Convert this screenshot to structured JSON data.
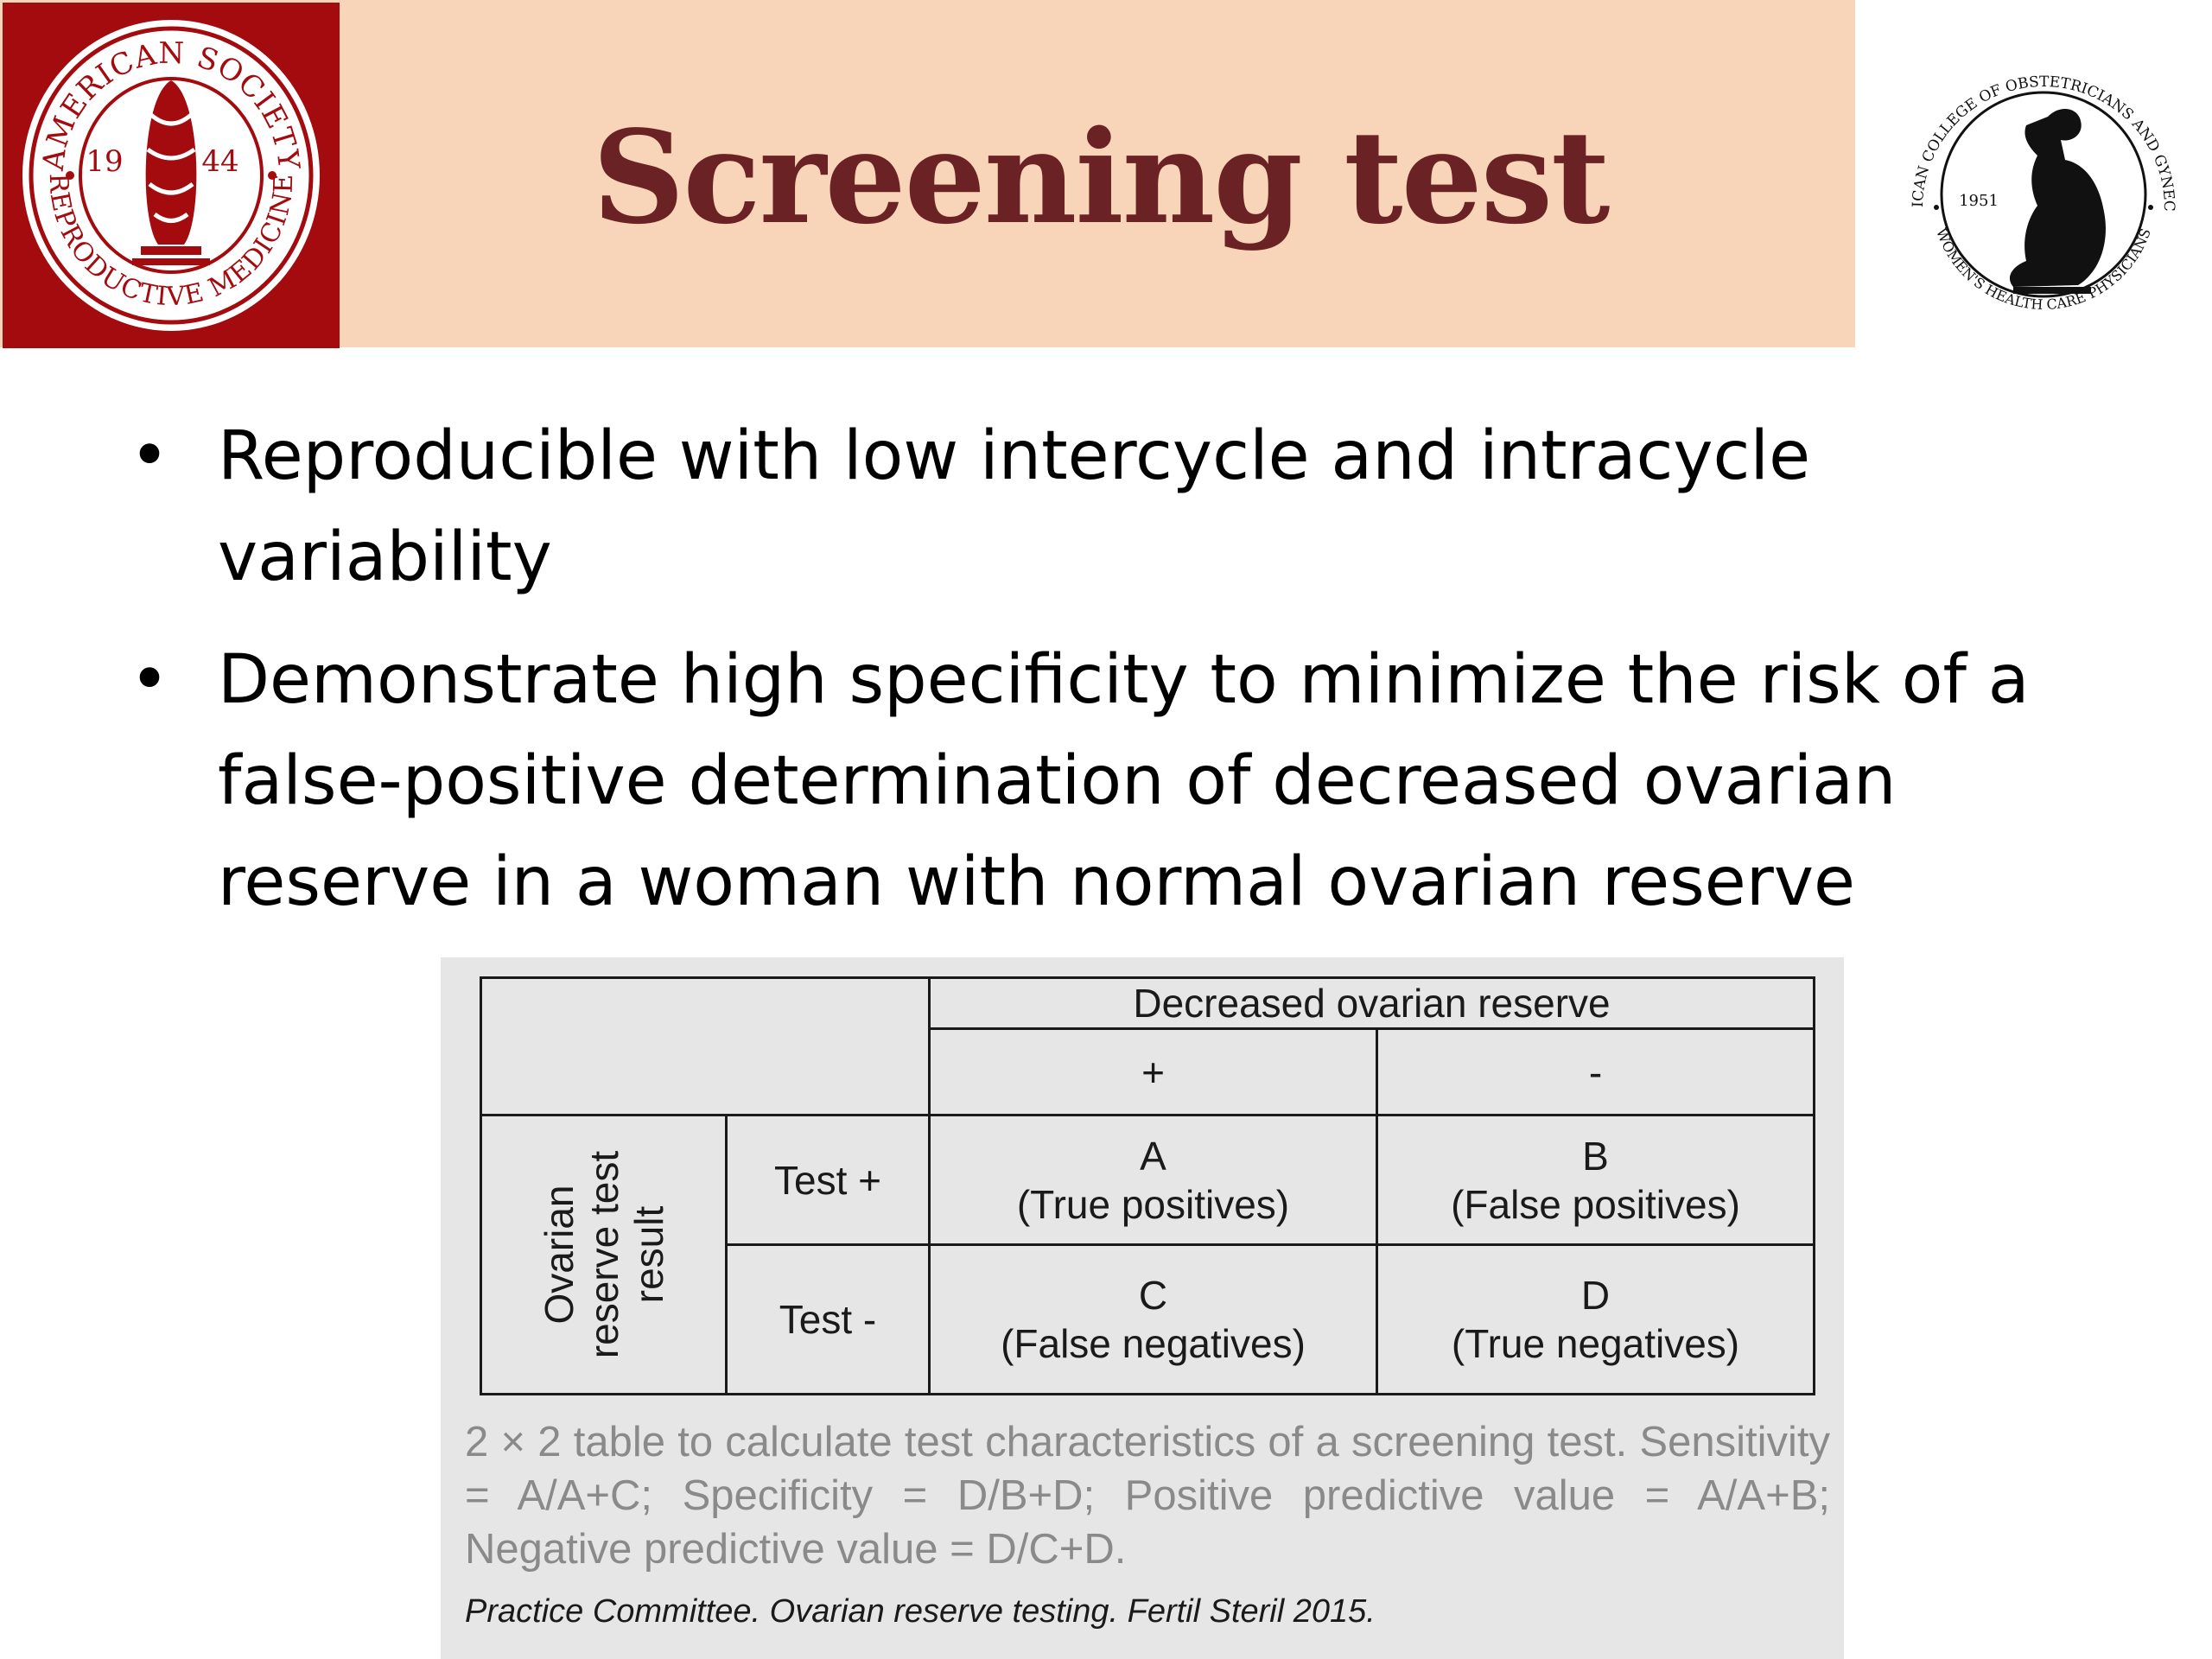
{
  "header": {
    "title": "Screening test",
    "band_color": "#f8d4b8",
    "title_color": "#6b2224"
  },
  "logos": {
    "left": {
      "icon": "asrm-seal-logo",
      "color": "#a30b0e",
      "text_top": "AMERICAN SOCIETY",
      "text_bottom": "REPRODUCTIVE MEDICINE",
      "year_left": "19",
      "year_right": "44"
    },
    "right": {
      "icon": "acog-seal-logo",
      "text_top": "THE AMERICAN COLLEGE OF OBSTETRICIANS AND GYNECOLOGISTS",
      "text_bottom": "WOMEN'S HEALTH CARE PHYSICIANS",
      "year": "1951"
    }
  },
  "bullets": [
    {
      "marker": "•",
      "text": "Reproducible with low intercycle and intracycle variability"
    },
    {
      "marker": "•",
      "text": "Demonstrate high specificity to minimize the risk of a false-positive determination of decreased ovarian reserve in a woman with normal ovarian reserve"
    }
  ],
  "figure": {
    "table": {
      "column_group_header": "Decreased ovarian reserve",
      "column_headers": [
        "+",
        "-"
      ],
      "row_group_header": "Ovarian reserve test result",
      "row_group_lines": [
        "Ovarian",
        "reserve test",
        "result"
      ],
      "rows": [
        {
          "label": "Test +",
          "cells": [
            {
              "letter": "A",
              "desc": "(True positives)"
            },
            {
              "letter": "B",
              "desc": "(False positives)"
            }
          ]
        },
        {
          "label": "Test -",
          "cells": [
            {
              "letter": "C",
              "desc": "(False negatives)"
            },
            {
              "letter": "D",
              "desc": "(True negatives)"
            }
          ]
        }
      ]
    },
    "caption": "2 × 2 table to calculate test characteristics of a screening test. Sensitivity = A/A+C; Specificity = D/B+D; Positive predictive value = A/A+B; Negative predictive value = D/C+D.",
    "citation": "Practice Committee. Ovarian reserve testing. Fertil Steril 2015."
  }
}
